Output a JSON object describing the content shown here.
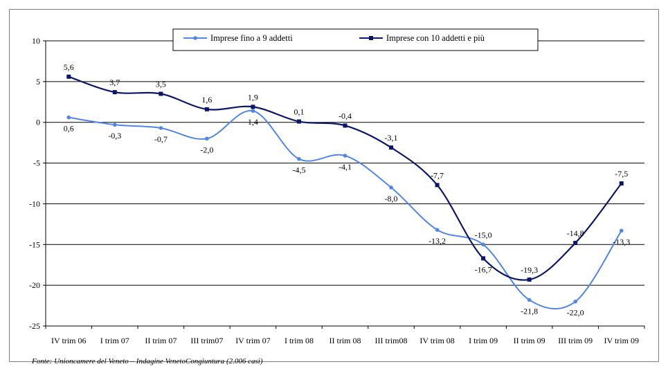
{
  "source_note": "Fonte: Unioncamere del Veneto – Indagine VenetoCongiuntura (2.006 casi)",
  "chart_data": {
    "type": "line",
    "title": "",
    "xlabel": "",
    "ylabel": "",
    "ylim": [
      -25,
      10
    ],
    "yticks": [
      10,
      5,
      0,
      -5,
      -10,
      -15,
      -20,
      -25
    ],
    "grid": true,
    "legend": "top",
    "categories": [
      "IV trim 06",
      "I trim 07",
      "II trim 07",
      "III trim07",
      "IV trim 07",
      "I trim 08",
      "II trim 08",
      "III trim08",
      "IV trim 08",
      "I trim 09",
      "II trim 09",
      "III trim 09",
      "IV trim 09"
    ],
    "series": [
      {
        "name": "Imprese fino a 9 addetti",
        "color": "#4f86e8",
        "marker": "circle",
        "values": [
          0.6,
          -0.3,
          -0.7,
          -2.0,
          1.4,
          -4.5,
          -4.1,
          -8.0,
          -13.2,
          -15.0,
          -21.8,
          -22.0,
          -13.3
        ],
        "labels": [
          "0,6",
          "-0,3",
          "-0,7",
          "-2,0",
          "1,4",
          "-4,5",
          "-4,1",
          "-8,0",
          "-13,2",
          "-15,0",
          "-21,8",
          "-22,0",
          "-13,3"
        ]
      },
      {
        "name": "Imprese con 10 addetti e più",
        "color": "#0b1668",
        "marker": "square",
        "values": [
          5.6,
          3.7,
          3.5,
          1.6,
          1.9,
          0.1,
          -0.4,
          -3.1,
          -7.7,
          -16.7,
          -19.3,
          -14.8,
          -7.5
        ],
        "labels": [
          "5,6",
          "3,7",
          "3,5",
          "1,6",
          "1,9",
          "0,1",
          "-0,4",
          "-3,1",
          "-7,7",
          "-16,7",
          "-19,3",
          "-14,8",
          "-7,5"
        ]
      }
    ]
  }
}
